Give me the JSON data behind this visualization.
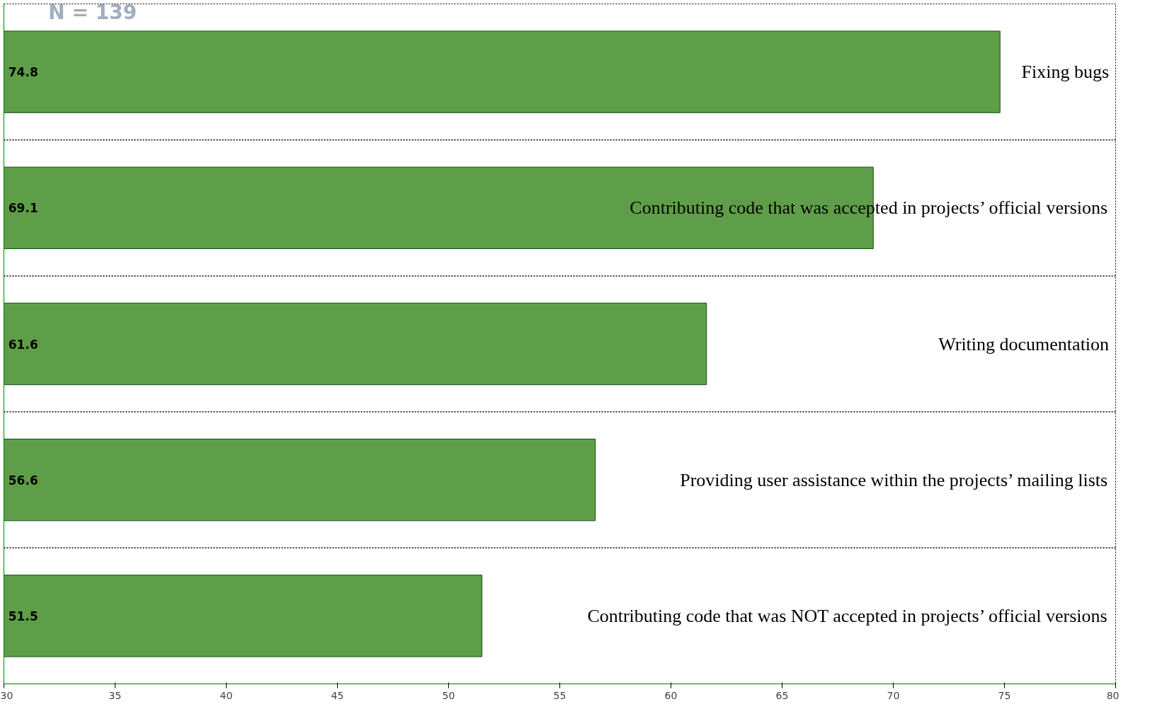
{
  "chart_data": {
    "type": "bar",
    "orientation": "horizontal",
    "categories": [
      "Fixing bugs",
      "Contributing code that was accepted in projects’ official versions",
      "Writing documentation",
      "Providing user assistance within the projects’ mailing lists",
      "Contributing code that was NOT accepted in projects’ official versions"
    ],
    "values": [
      74.8,
      69.1,
      61.6,
      56.6,
      51.5
    ],
    "color": "#5f9e48",
    "xlim": [
      30,
      80
    ],
    "xticks": [
      30,
      35,
      40,
      45,
      50,
      55,
      60,
      65,
      70,
      75,
      80
    ],
    "tick_labels": "x",
    "grid": false,
    "data_labels": true,
    "annotations": [
      "N = 139"
    ]
  }
}
